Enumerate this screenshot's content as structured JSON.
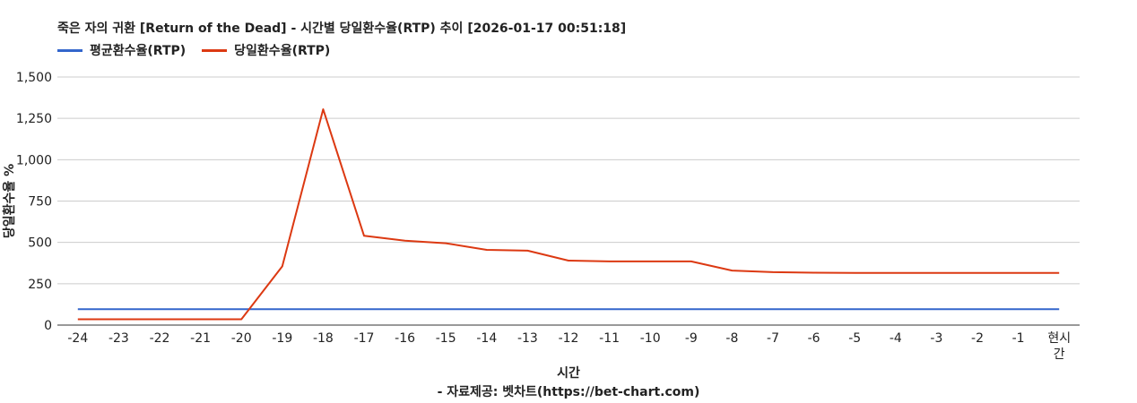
{
  "chart_data": {
    "type": "line",
    "title": "죽은 자의 귀환 [Return of the Dead] - 시간별 당일환수율(RTP) 추이 [2026-01-17 00:51:18]",
    "xlabel": "시간",
    "ylabel": "당일환수율 %",
    "source": "- 자료제공: 벳차트(https://bet-chart.com)",
    "categories": [
      "-24",
      "-23",
      "-22",
      "-21",
      "-20",
      "-19",
      "-18",
      "-17",
      "-16",
      "-15",
      "-14",
      "-13",
      "-12",
      "-11",
      "-10",
      "-9",
      "-8",
      "-7",
      "-6",
      "-5",
      "-4",
      "-3",
      "-2",
      "-1",
      "현시간"
    ],
    "ylim": [
      0,
      1500
    ],
    "yticks": [
      0,
      250,
      500,
      750,
      1000,
      1250,
      1500
    ],
    "ytick_labels": [
      "0",
      "250",
      "500",
      "750",
      "1,000",
      "1,250",
      "1,500"
    ],
    "grid": true,
    "legend_position": "top-left",
    "series": [
      {
        "name": "평균환수율(RTP)",
        "color": "#3366cc",
        "values": [
          96,
          96,
          96,
          96,
          96,
          96,
          96,
          96,
          96,
          96,
          96,
          96,
          96,
          96,
          96,
          96,
          96,
          96,
          96,
          96,
          96,
          96,
          96,
          96,
          96
        ]
      },
      {
        "name": "당일환수율(RTP)",
        "color": "#dc3912",
        "values": [
          35,
          35,
          35,
          35,
          35,
          355,
          1305,
          540,
          510,
          495,
          455,
          450,
          390,
          385,
          385,
          385,
          330,
          320,
          317,
          315,
          315,
          315,
          315,
          315,
          315
        ]
      }
    ]
  }
}
